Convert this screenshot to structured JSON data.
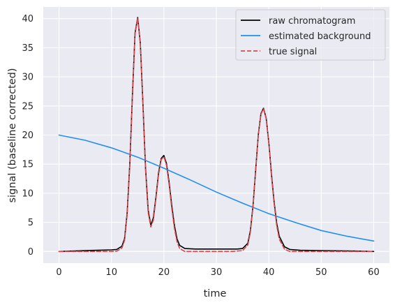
{
  "chart_data": {
    "type": "line",
    "xlabel": "time",
    "ylabel": "signal (baseline corrected)",
    "xlim": [
      -3,
      63
    ],
    "ylim": [
      -2,
      42
    ],
    "xticks": [
      0,
      10,
      20,
      30,
      40,
      50,
      60
    ],
    "yticks": [
      0,
      5,
      10,
      15,
      20,
      25,
      30,
      35,
      40
    ],
    "grid": true,
    "legend_position": "top-right",
    "series": [
      {
        "name": "raw chromatogram",
        "color": "#000000",
        "style": "solid",
        "x": [
          0,
          2,
          4,
          6,
          8,
          10,
          11,
          12,
          12.5,
          13,
          13.5,
          14,
          14.5,
          15,
          15.5,
          16,
          16.5,
          17,
          17.5,
          18,
          18.5,
          19,
          19.5,
          20,
          20.5,
          21,
          21.5,
          22,
          22.5,
          23,
          24,
          26,
          30,
          34,
          35,
          36,
          36.5,
          37,
          37.5,
          38,
          38.5,
          39,
          39.5,
          40,
          40.5,
          41,
          41.5,
          42,
          43,
          44,
          46,
          50,
          55,
          60
        ],
        "y": [
          0.0,
          0.06,
          0.12,
          0.18,
          0.23,
          0.28,
          0.35,
          0.9,
          2.2,
          6.6,
          15.1,
          27.0,
          37.5,
          40.2,
          35.9,
          25.4,
          14.4,
          7.1,
          4.5,
          5.8,
          9.5,
          13.6,
          16.0,
          16.5,
          15.1,
          11.8,
          7.9,
          4.5,
          2.2,
          1.05,
          0.5,
          0.42,
          0.42,
          0.42,
          0.5,
          1.4,
          3.6,
          7.9,
          14.1,
          20.0,
          23.7,
          24.6,
          22.9,
          18.7,
          13.4,
          8.6,
          4.9,
          2.6,
          0.8,
          0.35,
          0.2,
          0.16,
          0.1,
          0.0
        ]
      },
      {
        "name": "estimated background",
        "color": "#1f8ff0",
        "style": "solid",
        "x": [
          0,
          5,
          10,
          15,
          20,
          25,
          30,
          35,
          40,
          45,
          50,
          55,
          60
        ],
        "y": [
          20.0,
          19.1,
          17.8,
          16.2,
          14.3,
          12.3,
          10.2,
          8.3,
          6.5,
          5.0,
          3.6,
          2.6,
          1.8
        ]
      },
      {
        "name": "true signal",
        "color": "#d9484c",
        "style": "dashed",
        "x": [
          0,
          5,
          10,
          11,
          12,
          12.5,
          13,
          13.5,
          14,
          14.5,
          15,
          15.5,
          16,
          16.5,
          17,
          17.5,
          18,
          18.5,
          19,
          19.5,
          20,
          20.5,
          21,
          21.5,
          22,
          22.5,
          23,
          24,
          26,
          30,
          33,
          35,
          36,
          36.5,
          37,
          37.5,
          38,
          38.5,
          39,
          39.5,
          40,
          40.5,
          41,
          41.5,
          42,
          43,
          44,
          50,
          60
        ],
        "y": [
          0.0,
          0.0,
          0.0,
          0.05,
          0.6,
          1.9,
          6.3,
          14.8,
          26.7,
          37.3,
          40.1,
          35.7,
          25.1,
          14.0,
          6.7,
          4.2,
          5.4,
          9.2,
          13.3,
          15.8,
          16.3,
          14.8,
          11.4,
          7.4,
          4.0,
          1.7,
          0.5,
          0.0,
          0.0,
          0.0,
          0.0,
          0.15,
          1.1,
          3.3,
          7.7,
          13.9,
          19.9,
          23.6,
          24.5,
          22.8,
          18.5,
          13.1,
          8.3,
          4.5,
          2.1,
          0.4,
          0.0,
          0.0,
          0.0
        ]
      }
    ]
  }
}
